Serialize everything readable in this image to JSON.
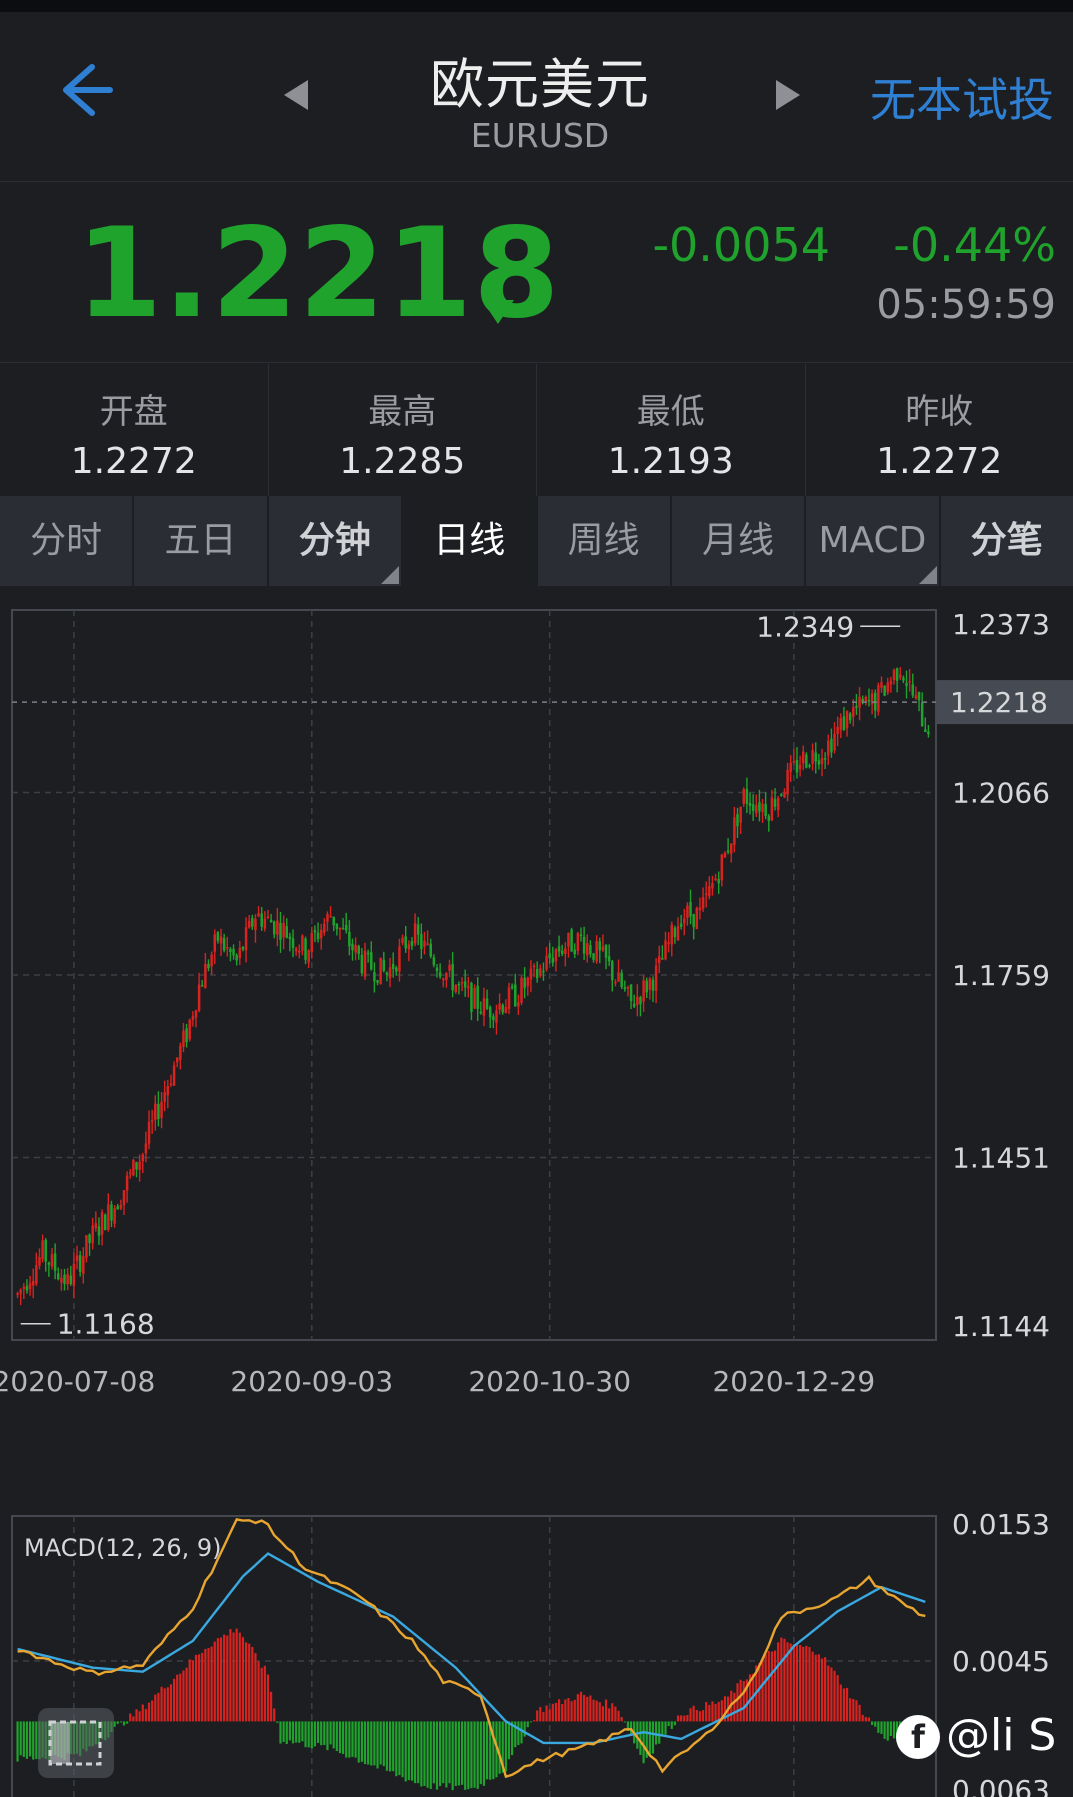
{
  "header": {
    "title": "欧元美元",
    "subtitle": "EURUSD",
    "trial_label": "无本试投"
  },
  "quote": {
    "price": "1.2218",
    "change": "-0.0054",
    "change_pct": "-0.44%",
    "time": "05:59:59",
    "direction": "down",
    "color_down": "#1fa32c",
    "color_up": "#d8231f"
  },
  "stats": [
    {
      "label": "开盘",
      "value": "1.2272"
    },
    {
      "label": "最高",
      "value": "1.2285"
    },
    {
      "label": "最低",
      "value": "1.2193"
    },
    {
      "label": "昨收",
      "value": "1.2272"
    }
  ],
  "tabs": [
    {
      "label": "分时",
      "active": false,
      "dropdown": false,
      "bold": false
    },
    {
      "label": "五日",
      "active": false,
      "dropdown": false,
      "bold": false
    },
    {
      "label": "分钟",
      "active": false,
      "dropdown": true,
      "bold": true
    },
    {
      "label": "日线",
      "active": true,
      "dropdown": false,
      "bold": false
    },
    {
      "label": "周线",
      "active": false,
      "dropdown": false,
      "bold": false
    },
    {
      "label": "月线",
      "active": false,
      "dropdown": false,
      "bold": false
    },
    {
      "label": "MACD",
      "active": false,
      "dropdown": true,
      "bold": false
    },
    {
      "label": "分笔",
      "active": false,
      "dropdown": false,
      "bold": true
    }
  ],
  "chart_data": [
    {
      "type": "candlestick",
      "y_ticks": [
        "1.2373",
        "1.2066",
        "1.1759",
        "1.1451",
        "1.1144"
      ],
      "ylim": [
        1.1144,
        1.2373
      ],
      "x_ticks": [
        "2020-07-08",
        "2020-09-03",
        "2020-10-30",
        "2020-12-29"
      ],
      "current_price_label": "1.2218",
      "current_price": 1.2218,
      "high_label": "1.2349",
      "high": 1.2349,
      "low_label": "1.1168",
      "low": 1.1168,
      "close_path": [
        [
          0,
          1.122
        ],
        [
          8,
          1.129
        ],
        [
          16,
          1.124
        ],
        [
          24,
          1.132
        ],
        [
          32,
          1.138
        ],
        [
          40,
          1.146
        ],
        [
          46,
          1.155
        ],
        [
          54,
          1.166
        ],
        [
          58,
          1.174
        ],
        [
          64,
          1.182
        ],
        [
          70,
          1.178
        ],
        [
          76,
          1.186
        ],
        [
          84,
          1.184
        ],
        [
          92,
          1.18
        ],
        [
          100,
          1.186
        ],
        [
          110,
          1.178
        ],
        [
          118,
          1.176
        ],
        [
          126,
          1.183
        ],
        [
          134,
          1.178
        ],
        [
          142,
          1.173
        ],
        [
          150,
          1.17
        ],
        [
          158,
          1.172
        ],
        [
          166,
          1.176
        ],
        [
          172,
          1.18
        ],
        [
          180,
          1.182
        ],
        [
          188,
          1.178
        ],
        [
          196,
          1.171
        ],
        [
          204,
          1.176
        ],
        [
          212,
          1.186
        ],
        [
          218,
          1.186
        ],
        [
          226,
          1.196
        ],
        [
          232,
          1.206
        ],
        [
          240,
          1.204
        ],
        [
          250,
          1.212
        ],
        [
          258,
          1.214
        ],
        [
          266,
          1.22
        ],
        [
          274,
          1.222
        ],
        [
          282,
          1.228
        ],
        [
          290,
          1.218
        ]
      ],
      "total_bars": 292
    },
    {
      "type": "macd",
      "label": "MACD(12, 26, 9)",
      "y_ticks": [
        "0.0153",
        "0.0045",
        "0.0063"
      ],
      "dif_color": "#e8a530",
      "dea_color": "#3aa9e0",
      "dif": [
        [
          0,
          0.0054
        ],
        [
          12,
          0.0044
        ],
        [
          24,
          0.0036
        ],
        [
          40,
          0.0042
        ],
        [
          56,
          0.0085
        ],
        [
          70,
          0.0149
        ],
        [
          78,
          0.015
        ],
        [
          92,
          0.0114
        ],
        [
          110,
          0.0092
        ],
        [
          126,
          0.006
        ],
        [
          136,
          0.003
        ],
        [
          148,
          0.002
        ],
        [
          156,
          -0.004
        ],
        [
          168,
          -0.0028
        ],
        [
          184,
          -0.0017
        ],
        [
          196,
          -0.0005
        ],
        [
          206,
          -0.0036
        ],
        [
          220,
          -0.001
        ],
        [
          234,
          0.0028
        ],
        [
          244,
          0.0078
        ],
        [
          260,
          0.009
        ],
        [
          272,
          0.0106
        ],
        [
          282,
          0.0089
        ],
        [
          290,
          0.0078
        ]
      ],
      "dea": [
        [
          0,
          0.0054
        ],
        [
          24,
          0.004
        ],
        [
          40,
          0.0037
        ],
        [
          56,
          0.006
        ],
        [
          72,
          0.0108
        ],
        [
          80,
          0.0125
        ],
        [
          96,
          0.0104
        ],
        [
          120,
          0.0078
        ],
        [
          140,
          0.004
        ],
        [
          156,
          0.0
        ],
        [
          168,
          -0.0016
        ],
        [
          184,
          -0.0016
        ],
        [
          200,
          -0.0008
        ],
        [
          212,
          -0.0013
        ],
        [
          232,
          0.001
        ],
        [
          248,
          0.0056
        ],
        [
          262,
          0.0082
        ],
        [
          276,
          0.01
        ],
        [
          290,
          0.0089
        ]
      ],
      "hist": [
        [
          0,
          -0.0028
        ],
        [
          20,
          -0.0025
        ],
        [
          40,
          0.001
        ],
        [
          60,
          0.0055
        ],
        [
          70,
          0.007
        ],
        [
          80,
          0.0035
        ],
        [
          84,
          -0.0014
        ],
        [
          100,
          -0.002
        ],
        [
          116,
          -0.0035
        ],
        [
          130,
          -0.0048
        ],
        [
          146,
          -0.005
        ],
        [
          156,
          -0.0035
        ],
        [
          166,
          0.0008
        ],
        [
          180,
          0.002
        ],
        [
          192,
          0.001
        ],
        [
          200,
          -0.003
        ],
        [
          212,
          0.0006
        ],
        [
          226,
          0.0016
        ],
        [
          244,
          0.006
        ],
        [
          256,
          0.0052
        ],
        [
          266,
          0.002
        ],
        [
          276,
          -0.0011
        ],
        [
          290,
          -0.0018
        ]
      ]
    }
  ],
  "watermark": {
    "logo_text": "f",
    "text": "@li S a"
  }
}
